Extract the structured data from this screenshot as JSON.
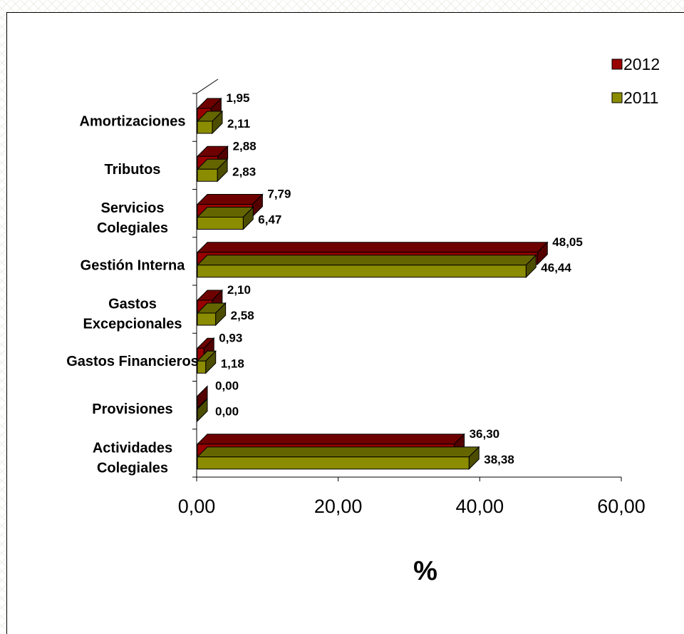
{
  "chart_data": {
    "type": "bar",
    "orientation": "horizontal",
    "style": "3d-clustered",
    "categories": [
      "Amortizaciones",
      "Tributos",
      "Servicios\nColegiales",
      "Gestión Interna",
      "Gastos\nExcepcionales",
      "Gastos Financieros",
      "Provisiones",
      "Actividades\nColegiales"
    ],
    "series": [
      {
        "name": "2012",
        "color": "#990000",
        "values": [
          1.95,
          2.88,
          7.79,
          48.05,
          2.1,
          0.93,
          0.0,
          36.3
        ],
        "labels": [
          "1,95",
          "2,88",
          "7,79",
          "48,05",
          "2,10",
          "0,93",
          "0,00",
          "36,30"
        ]
      },
      {
        "name": "2011",
        "color": "#8c8c00",
        "values": [
          2.11,
          2.83,
          6.47,
          46.44,
          2.58,
          1.18,
          0.0,
          38.38
        ],
        "labels": [
          "2,11",
          "2,83",
          "6,47",
          "46,44",
          "2,58",
          "1,18",
          "0,00",
          "38,38"
        ]
      }
    ],
    "xlabel": "%",
    "xlim": [
      0,
      60
    ],
    "xticks": [
      "0,00",
      "20,00",
      "40,00",
      "60,00"
    ],
    "grid": false,
    "legend": "top-right"
  }
}
